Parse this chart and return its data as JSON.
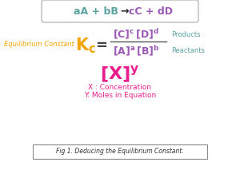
{
  "bg_color": "#ffffff",
  "reactants_text": "aA + bB",
  "arrow": "→",
  "products_text": "cC + dD",
  "reactants_box_color": "#5ba4a0",
  "products_box_color": "#9b59b6",
  "eq_label": "Equilibrium Constant",
  "eq_label_color": "#f0a500",
  "Kc_color": "#f0a500",
  "equals_color": "#444444",
  "fraction_color": "#9b59b6",
  "side_label_color": "#5ba4a0",
  "Xy_color": "#e91e8c",
  "xconc_color": "#e91e8c",
  "ymoles_color": "#e91e8c",
  "caption_color": "#333333",
  "fig_caption": "Fig 1. Deducing the Equilibrium Constant."
}
